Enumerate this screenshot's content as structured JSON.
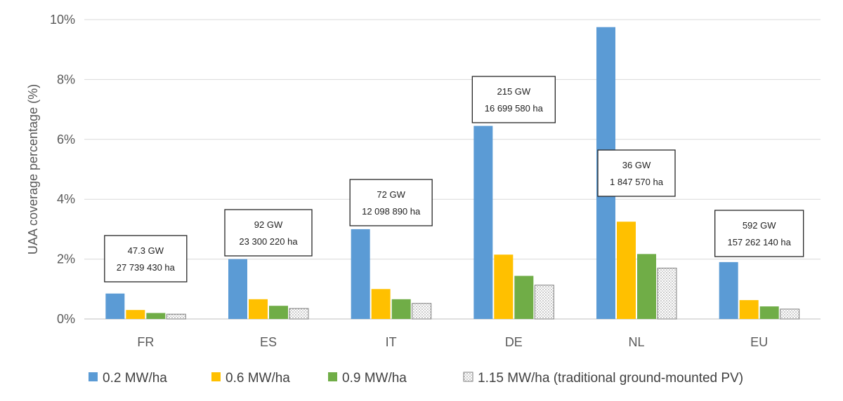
{
  "chart_data": {
    "type": "bar",
    "title": "",
    "xlabel": "",
    "ylabel": "UAA coverage percentage (%)",
    "ylim": [
      0,
      10
    ],
    "y_ticks": [
      "0%",
      "2%",
      "4%",
      "6%",
      "8%",
      "10%"
    ],
    "grid": true,
    "legend_position": "bottom",
    "categories": [
      "FR",
      "ES",
      "IT",
      "DE",
      "NL",
      "EU"
    ],
    "series": [
      {
        "name": "0.2 MW/ha",
        "color": "#5b9bd5",
        "values": [
          0.85,
          2.0,
          3.0,
          6.45,
          9.75,
          1.9
        ]
      },
      {
        "name": "0.6 MW/ha",
        "color": "#ffc000",
        "values": [
          0.3,
          0.66,
          1.0,
          2.15,
          3.25,
          0.63
        ]
      },
      {
        "name": "0.9 MW/ha",
        "color": "#70ad47",
        "values": [
          0.2,
          0.44,
          0.66,
          1.44,
          2.17,
          0.42
        ]
      },
      {
        "name": "1.15 MW/ha (traditional ground-mounted PV)",
        "color": "#d9d9d9",
        "pattern": "dotted",
        "values": [
          0.16,
          0.35,
          0.52,
          1.13,
          1.7,
          0.33
        ]
      }
    ],
    "annotations": [
      {
        "category": "FR",
        "line1": "47.3 GW",
        "line2": "27 739 430 ha"
      },
      {
        "category": "ES",
        "line1": "92 GW",
        "line2": "23 300 220 ha"
      },
      {
        "category": "IT",
        "line1": "72 GW",
        "line2": "12 098 890 ha"
      },
      {
        "category": "DE",
        "line1": "215 GW",
        "line2": "16 699 580 ha"
      },
      {
        "category": "NL",
        "line1": "36 GW",
        "line2": "1 847 570 ha"
      },
      {
        "category": "EU",
        "line1": "592 GW",
        "line2": "157 262 140 ha"
      }
    ]
  }
}
